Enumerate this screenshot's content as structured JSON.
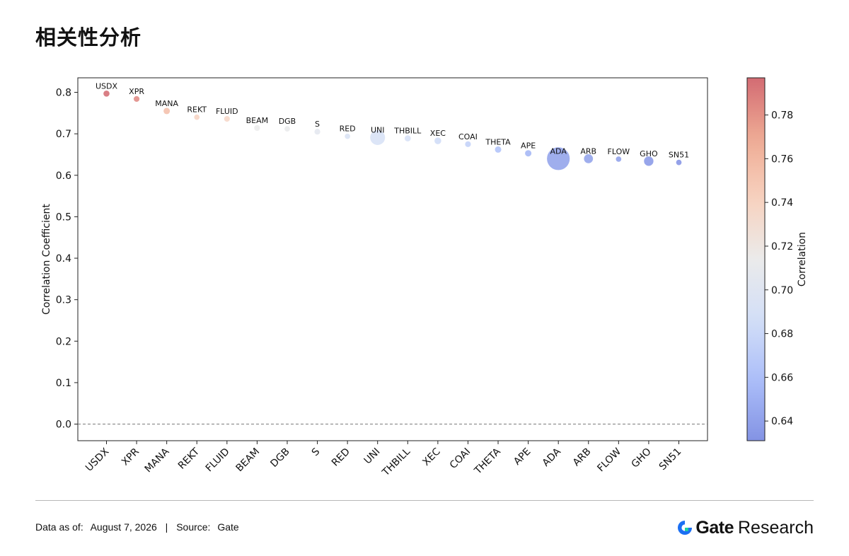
{
  "page": {
    "title": "相关性分析"
  },
  "footer": {
    "data_as_of_label": "Data as of:",
    "data_as_of_value": "August 7, 2026",
    "separator": "|",
    "source_label": "Source:",
    "source_value": "Gate"
  },
  "logo": {
    "brand": "Gate",
    "sub": "Research",
    "icon": "gate-logo-icon"
  },
  "chart_data": {
    "type": "scatter",
    "title": "",
    "xlabel": "",
    "ylabel": "Correlation Coefficient",
    "ylim": [
      -0.04,
      0.835
    ],
    "yticks": [
      0.0,
      0.1,
      0.2,
      0.3,
      0.4,
      0.5,
      0.6,
      0.7,
      0.8
    ],
    "categories": [
      "USDX",
      "XPR",
      "MANA",
      "REKT",
      "FLUID",
      "BEAM",
      "DGB",
      "S",
      "RED",
      "UNI",
      "THBILL",
      "XEC",
      "COAI",
      "THETA",
      "APE",
      "ADA",
      "ARB",
      "FLOW",
      "GHO",
      "SN51"
    ],
    "values": [
      0.797,
      0.784,
      0.755,
      0.74,
      0.736,
      0.714,
      0.712,
      0.705,
      0.694,
      0.691,
      0.689,
      0.683,
      0.675,
      0.662,
      0.653,
      0.64,
      0.64,
      0.639,
      0.634,
      0.631
    ],
    "bubble_sizes": [
      1.0,
      0.9,
      1.1,
      0.8,
      0.9,
      0.9,
      0.8,
      0.9,
      0.8,
      6.0,
      1.0,
      1.2,
      0.9,
      1.1,
      1.1,
      14.0,
      2.2,
      0.8,
      2.4,
      0.8
    ],
    "reference_line": {
      "y": 0.0,
      "style": "dashed",
      "color": "#7a7a7a"
    },
    "grid": false,
    "colorbar": {
      "label": "Correlation",
      "range": [
        0.631,
        0.797
      ],
      "ticks": [
        0.64,
        0.66,
        0.68,
        0.7,
        0.72,
        0.74,
        0.76,
        0.78
      ],
      "colormap": "coolwarm",
      "colors": [
        "#5a6fdb",
        "#8fa8f7",
        "#c4d4f5",
        "#e4e4e4",
        "#f5c3a9",
        "#e88e70",
        "#c43a44"
      ],
      "placement": "right"
    },
    "alpha": 0.65
  }
}
